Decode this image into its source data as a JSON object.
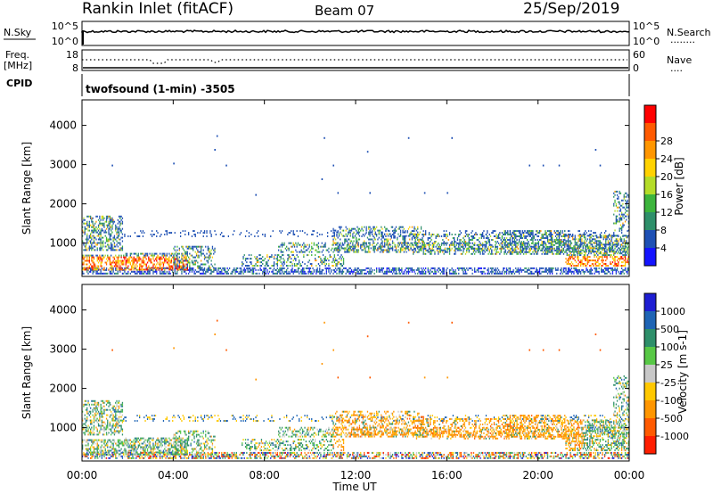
{
  "header": {
    "site": "Rankin Inlet (fitACF)",
    "beam": "Beam 07",
    "date": "25/Sep/2019"
  },
  "panels": {
    "nsky": {
      "left_label": "N.Sky",
      "left_ticks": [
        "10^5",
        "10^0"
      ],
      "right_ticks": [
        "10^5",
        "10^0"
      ],
      "right_label": "N.Search",
      "right_line": "........"
    },
    "freq": {
      "left_label_1": "Freq.",
      "left_label_2": "[MHz]",
      "left_ticks": [
        "18",
        "8"
      ],
      "right_ticks": [
        "60",
        "0"
      ],
      "right_label": "Nave",
      "right_line": "...."
    },
    "cpid": {
      "label": "CPID",
      "text": "twofsound (1-min) -3505"
    }
  },
  "chart_data": [
    {
      "type": "heatmap",
      "quantity": "Power",
      "ylabel": "Slant Range [km]",
      "yticks": [
        "1000",
        "2000",
        "3000",
        "4000"
      ],
      "ylim": [
        150,
        4650
      ],
      "xlim": [
        0,
        24
      ],
      "colorbar_label": "Power [dB]",
      "colorbar_ticks": [
        "4",
        "8",
        "12",
        "16",
        "20",
        "24",
        "28"
      ],
      "colors": [
        "#1414ff",
        "#1e50b4",
        "#2e8f6a",
        "#3cb43c",
        "#b4dc28",
        "#ffd200",
        "#ff9600",
        "#ff5a00",
        "#ff0000"
      ],
      "color_range": [
        0,
        32
      ]
    },
    {
      "type": "heatmap",
      "quantity": "Velocity",
      "ylabel": "Slant Range [km]",
      "yticks": [
        "1000",
        "2000",
        "3000",
        "4000"
      ],
      "ylim": [
        150,
        4650
      ],
      "xlim": [
        0,
        24
      ],
      "colorbar_label": "Velocity [m s-1]",
      "colorbar_ticks": [
        "1000",
        "500",
        "100",
        "25",
        "-25",
        "-100",
        "-500",
        "-1000"
      ],
      "colors": [
        "#1e1ed2",
        "#1e64b4",
        "#2e8f6a",
        "#58c846",
        "#c8c8c8",
        "#ffc800",
        "#ff9600",
        "#ff5a00",
        "#ff1e00"
      ]
    }
  ],
  "xaxis": {
    "ticks": [
      "00:00",
      "04:00",
      "08:00",
      "12:00",
      "16:00",
      "20:00",
      "00:00"
    ],
    "label": "Time UT"
  }
}
